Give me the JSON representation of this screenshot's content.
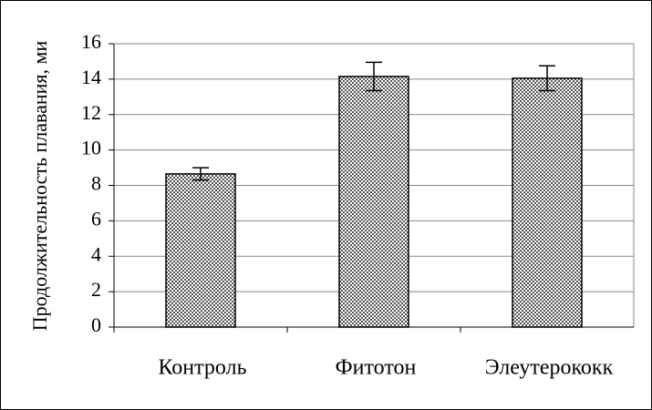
{
  "chart_data": {
    "type": "bar",
    "y_label": "Продолжительность плавания, ми",
    "categories": [
      "Контроль",
      "Фитотон",
      "Элеутерококк"
    ],
    "values": [
      8.65,
      14.15,
      14.05
    ],
    "errors": [
      0.35,
      0.8,
      0.7
    ],
    "color": "#444444",
    "ylim": [
      0,
      16
    ],
    "yticks": [
      0,
      2,
      4,
      6,
      8,
      10,
      12,
      14,
      16
    ],
    "grid": true
  }
}
